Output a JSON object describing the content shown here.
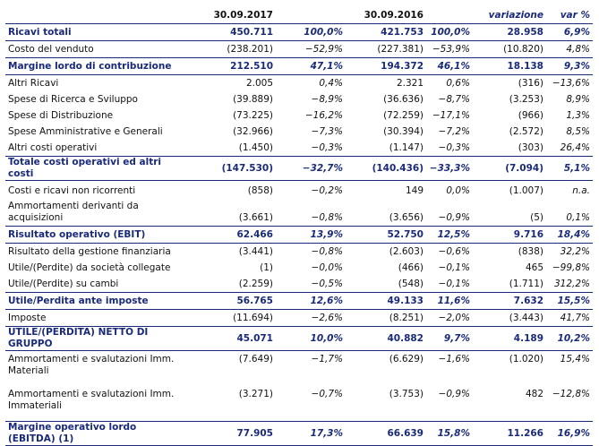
{
  "table": {
    "header": [
      "30.09.2017",
      "30.09.2016",
      "variazione",
      "var %"
    ],
    "rows": [
      {
        "bold": true,
        "cells": [
          "Ricavi totali",
          "450.711",
          "100,0%",
          "421.753",
          "100,0%",
          "28.958",
          "6,9%"
        ]
      },
      {
        "bold": false,
        "cells": [
          "Costo del venduto",
          "(238.201)",
          "−52,9%",
          "(227.381)",
          "−53,9%",
          "(10.820)",
          "4,8%"
        ]
      },
      {
        "bold": true,
        "cells": [
          "Margine lordo di contribuzione",
          "212.510",
          "47,1%",
          "194.372",
          "46,1%",
          "18.138",
          "9,3%"
        ]
      },
      {
        "bold": false,
        "cells": [
          "Altri Ricavi",
          "2.005",
          "0,4%",
          "2.321",
          "0,6%",
          "(316)",
          "−13,6%"
        ]
      },
      {
        "bold": false,
        "cells": [
          "Spese di Ricerca e Sviluppo",
          "(39.889)",
          "−8,9%",
          "(36.636)",
          "−8,7%",
          "(3.253)",
          "8,9%"
        ]
      },
      {
        "bold": false,
        "cells": [
          "Spese di Distribuzione",
          "(73.225)",
          "−16,2%",
          "(72.259)",
          "−17,1%",
          "(966)",
          "1,3%"
        ]
      },
      {
        "bold": false,
        "cells": [
          "Spese Amministrative e Generali",
          "(32.966)",
          "−7,3%",
          "(30.394)",
          "−7,2%",
          "(2.572)",
          "8,5%"
        ]
      },
      {
        "bold": false,
        "cells": [
          "Altri costi operativi",
          "(1.450)",
          "−0,3%",
          "(1.147)",
          "−0,3%",
          "(303)",
          "26,4%"
        ]
      },
      {
        "bold": true,
        "cells": [
          "Totale costi operativi ed altri costi",
          "(147.530)",
          "−32,7%",
          "(140.436)",
          "−33,3%",
          "(7.094)",
          "5,1%"
        ]
      },
      {
        "bold": false,
        "cells": [
          "Costi e ricavi non ricorrenti",
          "(858)",
          "−0,2%",
          "149",
          "0,0%",
          "(1.007)",
          "n.a."
        ]
      },
      {
        "bold": false,
        "cells": [
          "Ammortamenti derivanti da acquisizioni",
          "(3.661)",
          "−0,8%",
          "(3.656)",
          "−0,9%",
          "(5)",
          "0,1%"
        ]
      },
      {
        "bold": true,
        "cells": [
          "Risultato operativo (EBIT)",
          "62.466",
          "13,9%",
          "52.750",
          "12,5%",
          "9.716",
          "18,4%"
        ]
      },
      {
        "bold": false,
        "cells": [
          "Risultato della gestione finanziaria",
          "(3.441)",
          "−0,8%",
          "(2.603)",
          "−0,6%",
          "(838)",
          "32,2%"
        ]
      },
      {
        "bold": false,
        "cells": [
          "Utile/(Perdite) da società collegate",
          "(1)",
          "−0,0%",
          "(466)",
          "−0,1%",
          "465",
          "−99,8%"
        ]
      },
      {
        "bold": false,
        "cells": [
          "Utile/(Perdite) su cambi",
          "(2.259)",
          "−0,5%",
          "(548)",
          "−0,1%",
          "(1.711)",
          "312,2%"
        ]
      },
      {
        "bold": true,
        "cells": [
          "Utile/Perdita ante imposte",
          "56.765",
          "12,6%",
          "49.133",
          "11,6%",
          "7.632",
          "15,5%"
        ]
      },
      {
        "bold": false,
        "cells": [
          "Imposte",
          "(11.694)",
          "−2,6%",
          "(8.251)",
          "−2,0%",
          "(3.443)",
          "41,7%"
        ]
      },
      {
        "bold": true,
        "cells": [
          "UTILE/(PERDITA) NETTO DI GRUPPO",
          "45.071",
          "10,0%",
          "40.882",
          "9,7%",
          "4.189",
          "10,2%"
        ]
      },
      {
        "bold": false,
        "cells": [
          "Ammortamenti e svalutazioni Imm. Materiali",
          "(7.649)",
          "−1,7%",
          "(6.629)",
          "−1,6%",
          "(1.020)",
          "15,4%"
        ]
      },
      {
        "bold": false,
        "cells": [
          "Ammortamenti e svalutazioni Imm. Immateriali",
          "(3.271)",
          "−0,7%",
          "(3.753)",
          "−0,9%",
          "482",
          "−12,8%"
        ]
      },
      {
        "bold": true,
        "cells": [
          "Margine operativo lordo (EBITDA) (1)",
          "77.905",
          "17,3%",
          "66.639",
          "15,8%",
          "11.266",
          "16,9%"
        ]
      }
    ]
  }
}
